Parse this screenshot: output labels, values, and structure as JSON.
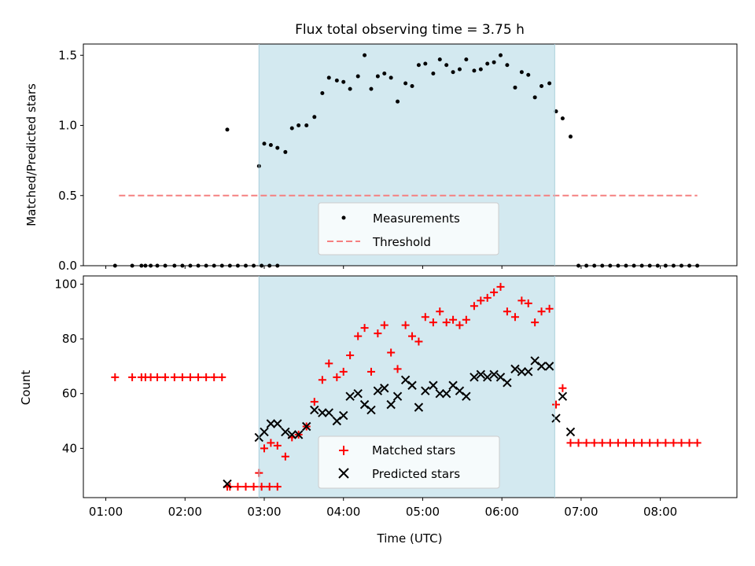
{
  "chart_data": [
    {
      "type": "scatter",
      "title": "Flux total observing time = 3.75 h",
      "ylabel": "Matched/Predicted stars",
      "xlabel": "",
      "xlim": [
        "00:43",
        "08:58"
      ],
      "ylim": [
        0,
        1.58
      ],
      "yticks": [
        "0.0",
        "0.5",
        "1.0",
        "1.5"
      ],
      "highlight_span": {
        "start": "02:56",
        "end": "06:40",
        "color": "#d3e9f0"
      },
      "legend": {
        "placement": "bottom-center",
        "entries": [
          "Measurements",
          "Threshold"
        ]
      },
      "threshold": {
        "name": "Threshold",
        "value": 0.5,
        "x": [
          "01:10",
          "08:28"
        ],
        "color": "#f58080",
        "style": "dashed"
      },
      "series": [
        {
          "name": "Measurements",
          "color": "#000000",
          "x": [
            "01:07",
            "01:20",
            "01:27",
            "01:30",
            "01:34",
            "01:39",
            "01:45",
            "01:52",
            "01:58",
            "02:04",
            "02:10",
            "02:16",
            "02:22",
            "02:28",
            "02:34",
            "02:40",
            "02:46",
            "02:52",
            "02:58",
            "03:04",
            "03:10",
            "02:32",
            "02:56",
            "03:00",
            "03:05",
            "03:10",
            "03:16",
            "03:21",
            "03:26",
            "03:32",
            "03:38",
            "03:44",
            "03:49",
            "03:55",
            "04:00",
            "04:05",
            "04:11",
            "04:16",
            "04:21",
            "04:26",
            "04:31",
            "04:36",
            "04:41",
            "04:47",
            "04:52",
            "04:57",
            "05:02",
            "05:08",
            "05:13",
            "05:18",
            "05:23",
            "05:28",
            "05:33",
            "05:39",
            "05:44",
            "05:49",
            "05:54",
            "05:59",
            "06:04",
            "06:10",
            "06:15",
            "06:20",
            "06:25",
            "06:30",
            "06:36",
            "06:41",
            "06:46",
            "06:52",
            "06:58",
            "07:04",
            "07:10",
            "07:16",
            "07:22",
            "07:28",
            "07:34",
            "07:40",
            "07:46",
            "07:52",
            "07:58",
            "08:04",
            "08:10",
            "08:16",
            "08:22",
            "08:28"
          ],
          "y": [
            0,
            0,
            0,
            0,
            0,
            0,
            0,
            0,
            0,
            0,
            0,
            0,
            0,
            0,
            0,
            0,
            0,
            0,
            0,
            0,
            0,
            0.97,
            0.71,
            0.87,
            0.86,
            0.84,
            0.81,
            0.98,
            1.0,
            1.0,
            1.06,
            1.23,
            1.34,
            1.32,
            1.31,
            1.26,
            1.35,
            1.5,
            1.26,
            1.35,
            1.37,
            1.34,
            1.17,
            1.3,
            1.28,
            1.43,
            1.44,
            1.37,
            1.47,
            1.43,
            1.38,
            1.4,
            1.47,
            1.39,
            1.4,
            1.44,
            1.45,
            1.5,
            1.43,
            1.27,
            1.38,
            1.36,
            1.2,
            1.28,
            1.3,
            1.1,
            1.05,
            0.92,
            0,
            0,
            0,
            0,
            0,
            0,
            0,
            0,
            0,
            0,
            0,
            0,
            0,
            0,
            0,
            0
          ]
        }
      ]
    },
    {
      "type": "scatter",
      "title": "",
      "ylabel": "Count",
      "xlabel": "Time (UTC)",
      "xlim": [
        "00:43",
        "08:58"
      ],
      "ylim": [
        22,
        103
      ],
      "yticks": [
        "40",
        "60",
        "80",
        "100"
      ],
      "xticks": [
        "01:00",
        "02:00",
        "03:00",
        "04:00",
        "05:00",
        "06:00",
        "07:00",
        "08:00"
      ],
      "highlight_span": {
        "start": "02:56",
        "end": "06:40",
        "color": "#d3e9f0"
      },
      "legend": {
        "placement": "bottom-center",
        "entries": [
          "Matched stars",
          "Predicted stars"
        ]
      },
      "series": [
        {
          "name": "Matched stars",
          "marker": "plus",
          "color": "#ff0000",
          "x": [
            "01:07",
            "01:20",
            "01:27",
            "01:30",
            "01:34",
            "01:39",
            "01:45",
            "01:52",
            "01:58",
            "02:04",
            "02:10",
            "02:16",
            "02:22",
            "02:28",
            "02:34",
            "02:40",
            "02:46",
            "02:52",
            "02:58",
            "03:04",
            "03:10",
            "02:32",
            "02:56",
            "03:00",
            "03:05",
            "03:10",
            "03:16",
            "03:21",
            "03:26",
            "03:32",
            "03:38",
            "03:44",
            "03:49",
            "03:55",
            "04:00",
            "04:05",
            "04:11",
            "04:16",
            "04:21",
            "04:26",
            "04:31",
            "04:36",
            "04:41",
            "04:47",
            "04:52",
            "04:57",
            "05:02",
            "05:08",
            "05:13",
            "05:18",
            "05:23",
            "05:28",
            "05:33",
            "05:39",
            "05:44",
            "05:49",
            "05:54",
            "05:59",
            "06:04",
            "06:10",
            "06:15",
            "06:20",
            "06:25",
            "06:30",
            "06:36",
            "06:41",
            "06:46",
            "06:52",
            "06:58",
            "07:04",
            "07:10",
            "07:16",
            "07:22",
            "07:28",
            "07:34",
            "07:40",
            "07:46",
            "07:52",
            "07:58",
            "08:04",
            "08:10",
            "08:16",
            "08:22",
            "08:28"
          ],
          "y": [
            66,
            66,
            66,
            66,
            66,
            66,
            66,
            66,
            66,
            66,
            66,
            66,
            66,
            66,
            26,
            26,
            26,
            26,
            26,
            26,
            26,
            26,
            31,
            40,
            42,
            41,
            37,
            44,
            45,
            48,
            57,
            65,
            71,
            66,
            68,
            74,
            81,
            84,
            68,
            82,
            85,
            75,
            69,
            85,
            81,
            79,
            88,
            86,
            90,
            86,
            87,
            85,
            87,
            92,
            94,
            95,
            97,
            99,
            90,
            88,
            94,
            93,
            86,
            90,
            91,
            56,
            62,
            42,
            42,
            42,
            42,
            42,
            42,
            42,
            42,
            42,
            42,
            42,
            42,
            42,
            42,
            42,
            42,
            42
          ]
        },
        {
          "name": "Predicted stars",
          "marker": "x",
          "color": "#000000",
          "x": [
            "02:32",
            "02:56",
            "03:00",
            "03:05",
            "03:10",
            "03:16",
            "03:21",
            "03:26",
            "03:32",
            "03:38",
            "03:44",
            "03:49",
            "03:55",
            "04:00",
            "04:05",
            "04:11",
            "04:16",
            "04:21",
            "04:26",
            "04:31",
            "04:36",
            "04:41",
            "04:47",
            "04:52",
            "04:57",
            "05:02",
            "05:08",
            "05:13",
            "05:18",
            "05:23",
            "05:28",
            "05:33",
            "05:39",
            "05:44",
            "05:49",
            "05:54",
            "05:59",
            "06:04",
            "06:10",
            "06:15",
            "06:20",
            "06:25",
            "06:30",
            "06:36",
            "06:41",
            "06:46",
            "06:52"
          ],
          "y": [
            27,
            44,
            46,
            49,
            49,
            46,
            45,
            45,
            48,
            54,
            53,
            53,
            50,
            52,
            59,
            60,
            56,
            54,
            61,
            62,
            56,
            59,
            65,
            63,
            55,
            61,
            63,
            60,
            60,
            63,
            61,
            59,
            66,
            67,
            66,
            67,
            66,
            64,
            69,
            68,
            68,
            72,
            70,
            70,
            51,
            59,
            46
          ]
        }
      ]
    }
  ]
}
